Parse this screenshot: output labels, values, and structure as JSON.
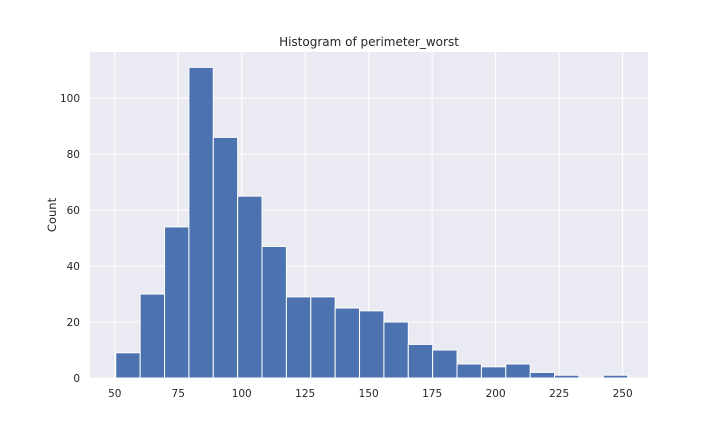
{
  "chart_data": {
    "type": "bar",
    "title": "Histogram of perimeter_worst",
    "xlabel": "",
    "ylabel": "Count",
    "xlim": [
      40.25,
      260.0
    ],
    "ylim": [
      0,
      116.5
    ],
    "grid": true,
    "x_ticks": [
      50,
      75,
      100,
      125,
      150,
      175,
      200,
      225,
      250
    ],
    "y_ticks": [
      0,
      20,
      40,
      60,
      80,
      100
    ],
    "bin_width": 9.6,
    "bins": [
      {
        "x0": 50.4,
        "count": 9
      },
      {
        "x0": 60.0,
        "count": 30
      },
      {
        "x0": 69.6,
        "count": 54
      },
      {
        "x0": 79.2,
        "count": 111
      },
      {
        "x0": 88.8,
        "count": 86
      },
      {
        "x0": 98.4,
        "count": 65
      },
      {
        "x0": 108.0,
        "count": 47
      },
      {
        "x0": 117.6,
        "count": 29
      },
      {
        "x0": 127.2,
        "count": 29
      },
      {
        "x0": 136.8,
        "count": 25
      },
      {
        "x0": 146.4,
        "count": 24
      },
      {
        "x0": 156.0,
        "count": 20
      },
      {
        "x0": 165.6,
        "count": 12
      },
      {
        "x0": 175.2,
        "count": 10
      },
      {
        "x0": 184.8,
        "count": 5
      },
      {
        "x0": 194.4,
        "count": 4
      },
      {
        "x0": 204.0,
        "count": 5
      },
      {
        "x0": 213.6,
        "count": 2
      },
      {
        "x0": 223.2,
        "count": 1
      },
      {
        "x0": 232.8,
        "count": 0
      },
      {
        "x0": 242.4,
        "count": 1
      }
    ],
    "colors": {
      "bar": "#4c72b0",
      "background": "#eaeaf2",
      "grid": "#ffffff"
    }
  }
}
